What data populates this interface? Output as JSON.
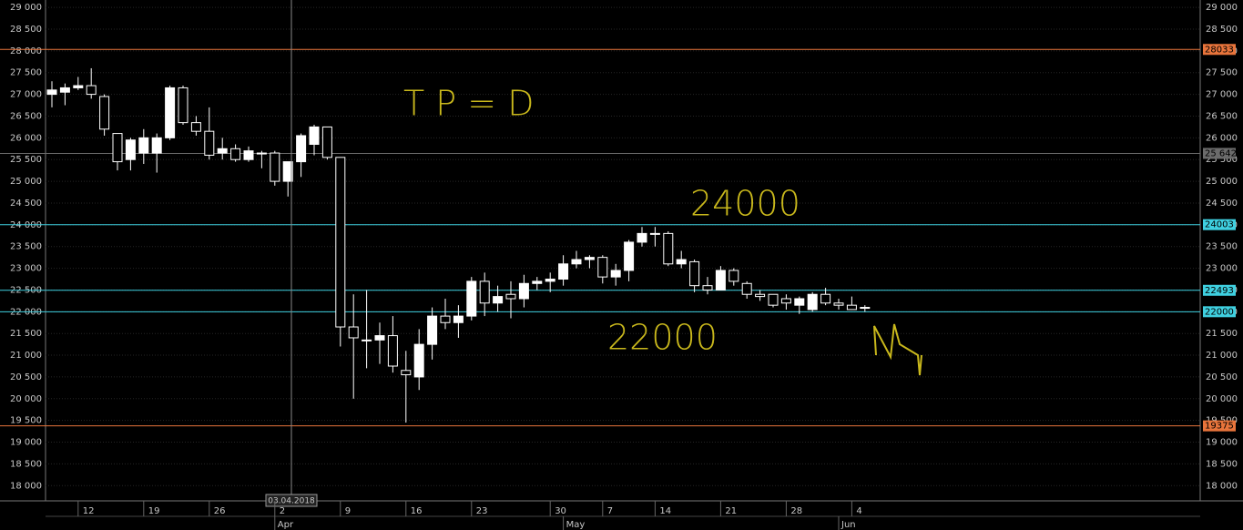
{
  "chart_data": {
    "type": "candlestick",
    "categories": [
      null,
      null,
      "12",
      null,
      null,
      null,
      null,
      "19",
      null,
      null,
      null,
      null,
      "26",
      null,
      null,
      null,
      null,
      "2",
      null,
      null,
      null,
      null,
      "9",
      null,
      null,
      null,
      null,
      "16",
      null,
      null,
      null,
      null,
      "23",
      null,
      null,
      null,
      null,
      null,
      "30",
      null,
      null,
      null,
      "7",
      null,
      null,
      null,
      "14",
      null,
      null,
      null,
      null,
      "21",
      null,
      null,
      null,
      null,
      "28",
      null,
      null,
      null,
      null,
      "4",
      null
    ],
    "months": [
      null,
      null,
      null,
      null,
      null,
      null,
      null,
      null,
      null,
      null,
      null,
      null,
      null,
      null,
      null,
      null,
      null,
      "Apr",
      null,
      null,
      null,
      null,
      null,
      null,
      null,
      null,
      null,
      null,
      null,
      null,
      null,
      null,
      null,
      null,
      null,
      null,
      null,
      null,
      null,
      "May",
      null,
      null,
      null,
      null,
      null,
      null,
      null,
      null,
      null,
      null,
      null,
      null,
      null,
      null,
      null,
      null,
      null,
      null,
      null,
      null,
      "Jun",
      null,
      null
    ],
    "open": [
      27000,
      27050,
      27150,
      27200,
      26950,
      26100,
      25500,
      25650,
      25650,
      26000,
      27150,
      26350,
      26150,
      25650,
      25750,
      25500,
      25650,
      25650,
      25000,
      25450,
      25850,
      26250,
      25550,
      21650,
      21350,
      21350,
      21450,
      20650,
      20500,
      21250,
      21900,
      21750,
      21900,
      22700,
      22200,
      22400,
      22300,
      22650,
      22700,
      22750,
      23100,
      23200,
      23250,
      22800,
      22950,
      23600,
      23800,
      23800,
      23100,
      23150,
      22600,
      22500,
      22950,
      22650,
      22400,
      22400,
      22300,
      22150,
      22050,
      22400,
      22200,
      22150,
      22100
    ],
    "high": [
      27300,
      27250,
      27400,
      27600,
      27000,
      26100,
      26000,
      26200,
      26100,
      27200,
      27200,
      26500,
      26700,
      26000,
      25850,
      25800,
      25700,
      25700,
      25400,
      26100,
      26300,
      26250,
      25550,
      22400,
      22500,
      21750,
      21900,
      21100,
      21600,
      22100,
      22300,
      22150,
      22800,
      22900,
      22600,
      22700,
      22850,
      22800,
      22900,
      23300,
      23400,
      23300,
      23300,
      23100,
      23650,
      23950,
      23950,
      23850,
      23400,
      23200,
      22800,
      23050,
      23000,
      22700,
      22500,
      22400,
      22400,
      22350,
      22450,
      22550,
      22300,
      22350,
      22150
    ],
    "low": [
      26700,
      26750,
      27100,
      26900,
      26050,
      25250,
      25250,
      25400,
      25200,
      25950,
      26300,
      26050,
      25500,
      25500,
      25450,
      25450,
      25300,
      24900,
      24650,
      25100,
      25600,
      25500,
      21200,
      20000,
      20700,
      20800,
      20600,
      19450,
      20200,
      20900,
      21600,
      21400,
      21800,
      21900,
      22000,
      21850,
      22100,
      22500,
      22450,
      22600,
      23000,
      23000,
      22650,
      22600,
      22700,
      23500,
      23500,
      23050,
      23000,
      22450,
      22400,
      22500,
      22600,
      22300,
      22250,
      22100,
      22050,
      21950,
      22000,
      22150,
      22050,
      22050,
      22000
    ],
    "close": [
      27100,
      27150,
      27200,
      27000,
      26200,
      25450,
      25950,
      26000,
      26000,
      27150,
      26350,
      26150,
      25600,
      25750,
      25500,
      25700,
      25650,
      25000,
      25450,
      26050,
      26250,
      25550,
      21650,
      21400,
      21350,
      21450,
      20750,
      20550,
      21250,
      21900,
      21750,
      21900,
      22700,
      22200,
      22350,
      22300,
      22650,
      22700,
      22750,
      23100,
      23200,
      23250,
      22800,
      22950,
      23600,
      23800,
      23800,
      23100,
      23200,
      22600,
      22500,
      22950,
      22700,
      22400,
      22350,
      22150,
      22200,
      22300,
      22400,
      22200,
      22150,
      22050,
      22100
    ],
    "up_color": "#ffffff",
    "down_color": "#000000",
    "ylim": [
      17650,
      29170
    ],
    "yticks": [
      {
        "value": 18000,
        "label": "18 000"
      },
      {
        "value": 18500,
        "label": "18 500"
      },
      {
        "value": 19000,
        "label": "19 000"
      },
      {
        "value": 19500,
        "label": "19 500"
      },
      {
        "value": 20000,
        "label": "20 000"
      },
      {
        "value": 20500,
        "label": "20 500"
      },
      {
        "value": 21000,
        "label": "21 000"
      },
      {
        "value": 21500,
        "label": "21 500"
      },
      {
        "value": 22000,
        "label": "22 000"
      },
      {
        "value": 22500,
        "label": "22 500"
      },
      {
        "value": 23000,
        "label": "23 000"
      },
      {
        "value": 23500,
        "label": "23 500"
      },
      {
        "value": 24000,
        "label": "24 000"
      },
      {
        "value": 24500,
        "label": "24 500"
      },
      {
        "value": 25000,
        "label": "25 000"
      },
      {
        "value": 25500,
        "label": "25 500"
      },
      {
        "value": 26000,
        "label": "26 000"
      },
      {
        "value": 26500,
        "label": "26 500"
      },
      {
        "value": 27000,
        "label": "27 000"
      },
      {
        "value": 27500,
        "label": "27 500"
      },
      {
        "value": 28000,
        "label": "28 000"
      },
      {
        "value": 28500,
        "label": "28 500"
      },
      {
        "value": 29000,
        "label": "29 000"
      }
    ],
    "grid": true,
    "levels": [
      {
        "value": 28033,
        "label": "28033",
        "color": "#e8743b"
      },
      {
        "value": 25642,
        "label": "25 642",
        "color": "#6b6b6b"
      },
      {
        "value": 24003,
        "label": "24003",
        "color": "#3fd0e0"
      },
      {
        "value": 22493,
        "label": "22493",
        "color": "#3fd0e0"
      },
      {
        "value": 22000,
        "label": "22000",
        "color": "#3fd0e0"
      },
      {
        "value": 19375,
        "label": "19375",
        "color": "#e8743b"
      }
    ],
    "cursor_label": "03.04.2018",
    "annotations": [
      "T P = D",
      "24000",
      "22000"
    ]
  }
}
